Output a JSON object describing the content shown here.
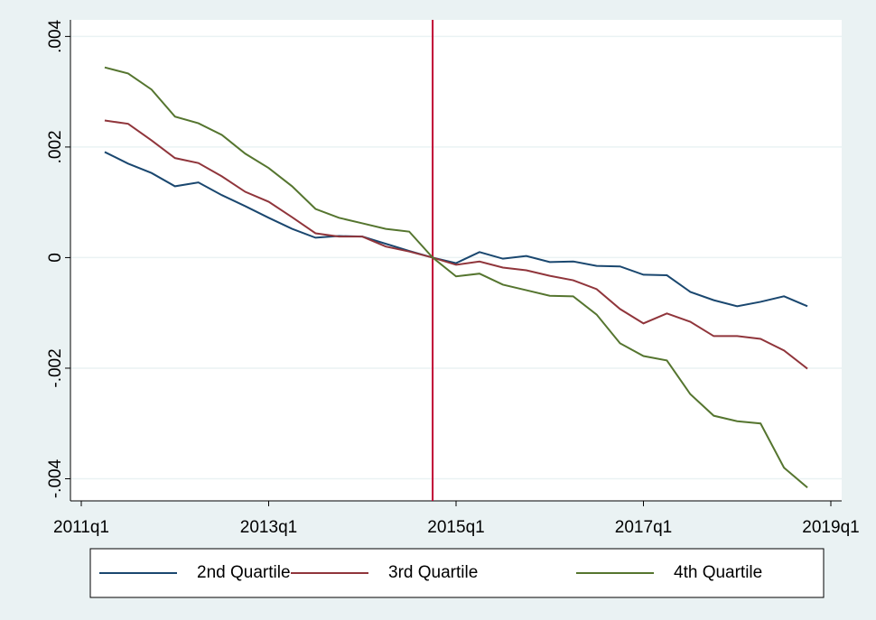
{
  "chart_data": {
    "type": "line",
    "x": [
      "2011q2",
      "2011q3",
      "2011q4",
      "2012q1",
      "2012q2",
      "2012q3",
      "2012q4",
      "2013q1",
      "2013q2",
      "2013q3",
      "2013q4",
      "2014q1",
      "2014q2",
      "2014q3",
      "2014q4",
      "2015q1",
      "2015q2",
      "2015q3",
      "2015q4",
      "2016q1",
      "2016q2",
      "2016q3",
      "2016q4",
      "2017q1",
      "2017q2",
      "2017q3",
      "2017q4",
      "2018q1",
      "2018q2",
      "2018q3",
      "2018q4"
    ],
    "series": [
      {
        "name": "2nd Quartile",
        "color": "#1a476f",
        "values": [
          0.00191,
          0.0017,
          0.00153,
          0.00129,
          0.00136,
          0.00113,
          0.00093,
          0.00072,
          0.00052,
          0.00036,
          0.00039,
          0.00038,
          0.00025,
          0.00012,
          0,
          -0.0001,
          0.0001,
          -2e-05,
          3e-05,
          -8e-05,
          -7e-05,
          -0.00015,
          -0.00016,
          -0.00031,
          -0.00032,
          -0.00062,
          -0.00077,
          -0.00088,
          -0.0008,
          -0.0007,
          -0.00088
        ]
      },
      {
        "name": "3rd Quartile",
        "color": "#90353b",
        "values": [
          0.00248,
          0.00242,
          0.00212,
          0.0018,
          0.00171,
          0.00147,
          0.00119,
          0.00101,
          0.00073,
          0.00044,
          0.00038,
          0.00038,
          0.0002,
          0.00011,
          0,
          -0.00013,
          -7e-05,
          -0.00018,
          -0.00023,
          -0.00033,
          -0.00041,
          -0.00057,
          -0.00093,
          -0.00119,
          -0.00101,
          -0.00116,
          -0.00142,
          -0.00142,
          -0.00147,
          -0.00168,
          -0.00201
        ]
      },
      {
        "name": "4th Quartile",
        "color": "#55752f",
        "values": [
          0.00344,
          0.00333,
          0.00304,
          0.00255,
          0.00243,
          0.00222,
          0.00188,
          0.00162,
          0.00129,
          0.00088,
          0.00072,
          0.00062,
          0.00052,
          0.00047,
          0,
          -0.00034,
          -0.00029,
          -0.00049,
          -0.00059,
          -0.00069,
          -0.0007,
          -0.00103,
          -0.00155,
          -0.00178,
          -0.00186,
          -0.00247,
          -0.00286,
          -0.00296,
          -0.003,
          -0.0038,
          -0.00416
        ]
      }
    ],
    "xlim": [
      "2011q1",
      "2019q1"
    ],
    "xticks": [
      "2011q1",
      "2013q1",
      "2015q1",
      "2017q1",
      "2019q1"
    ],
    "ylim": [
      -0.0044,
      0.0043
    ],
    "yticks": [
      {
        "value": -0.004,
        "label": "-.004"
      },
      {
        "value": -0.002,
        "label": "-.002"
      },
      0,
      {
        "value": 0.002,
        "label": ".002"
      },
      {
        "value": 0.004,
        "label": ".004"
      }
    ],
    "grid": true,
    "vline": "2014q4",
    "vline_color": "#c10534",
    "legend": "bottom"
  }
}
